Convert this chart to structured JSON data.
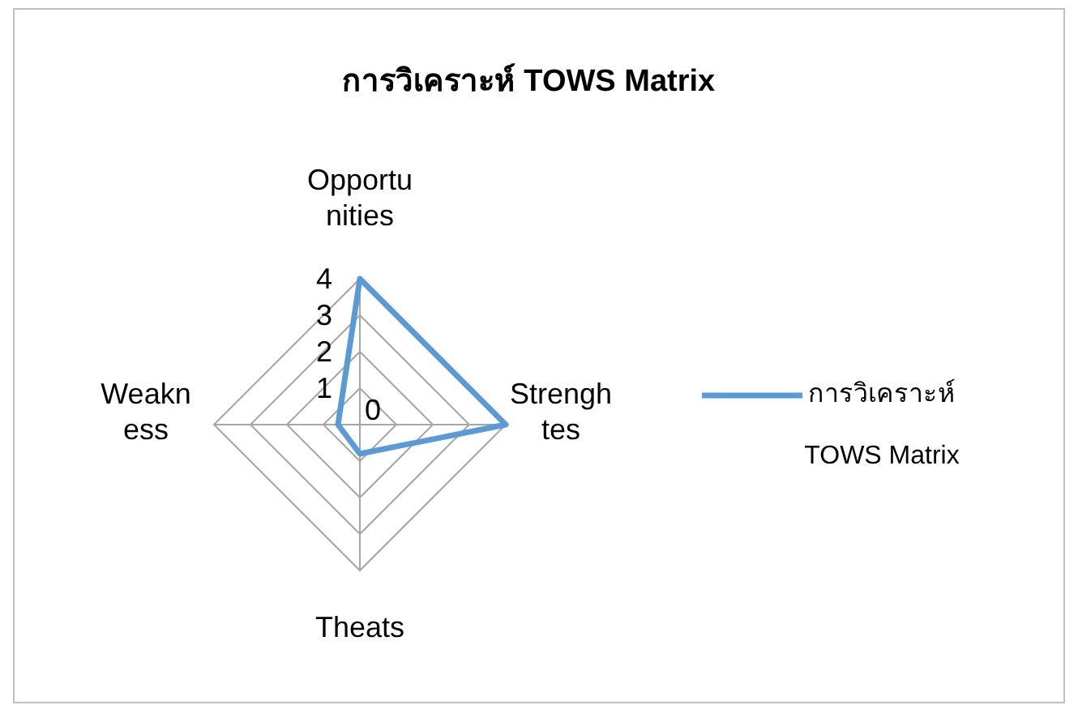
{
  "chart_data": {
    "type": "radar",
    "title": "การวิเคราะห์ TOWS Matrix",
    "categories": [
      "Opportunities",
      "Strenghtes",
      "Theats",
      "Weakness"
    ],
    "series": [
      {
        "name": "การวิเคราะห์ TOWS Matrix",
        "color": "#5b9bd5",
        "values": [
          4,
          4,
          0.8,
          0.6
        ]
      }
    ],
    "ylim": [
      0,
      4
    ],
    "yticks": [
      0,
      1,
      2,
      3,
      4
    ],
    "grid": true,
    "legend": "right",
    "marker": "none"
  }
}
